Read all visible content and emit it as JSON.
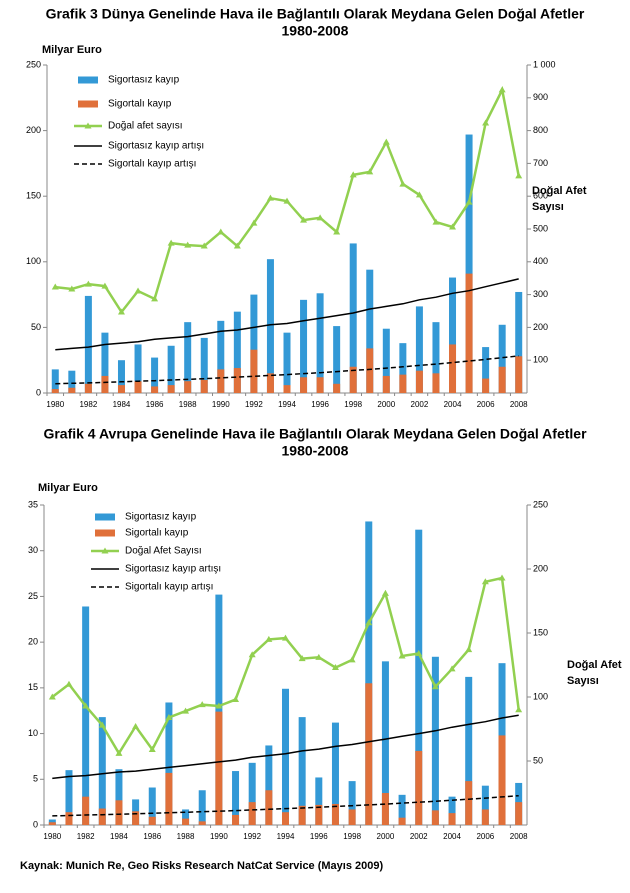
{
  "chart_data": [
    {
      "type": "bar",
      "title": "Grafik 3 Dünya Genelinde Hava ile Bağlantılı Olarak Meydana Gelen Doğal Afetler",
      "subtitle": "1980-2008",
      "ylabel": "Milyar Euro",
      "y2label": [
        "Doğal Afet",
        "Sayısı"
      ],
      "categories": [
        "1980",
        null,
        "1982",
        null,
        "1984",
        null,
        "1986",
        null,
        "1988",
        null,
        "1990",
        null,
        "1992",
        null,
        "1994",
        null,
        "1996",
        null,
        "1998",
        null,
        "2000",
        null,
        "2002",
        null,
        "2004",
        null,
        "2006",
        null,
        "2008"
      ],
      "ylim": [
        0,
        250
      ],
      "yticks": [
        0,
        50,
        100,
        150,
        200,
        250
      ],
      "y2lim": [
        0,
        1000
      ],
      "y2ticks": [
        100,
        200,
        300,
        400,
        500,
        600,
        700,
        800,
        900,
        {
          "value": 1000,
          "label": "1 000"
        }
      ],
      "series": [
        {
          "name": "Sigortasız kayıp",
          "kind": "bar",
          "color": "#3399d6",
          "values": [
            18,
            17,
            74,
            46,
            25,
            37,
            27,
            36,
            54,
            42,
            55,
            62,
            75,
            102,
            46,
            71,
            76,
            51,
            114,
            94,
            49,
            38,
            66,
            54,
            88,
            197,
            35,
            52,
            77
          ]
        },
        {
          "name": "Sigortalı kayıp",
          "kind": "bar",
          "color": "#e0703a",
          "values": [
            3,
            4,
            7,
            13,
            6,
            9,
            5,
            6,
            9,
            10,
            18,
            19,
            33,
            15,
            6,
            12,
            12,
            7,
            20,
            34,
            13,
            14,
            17,
            15,
            37,
            91,
            11,
            20,
            28
          ]
        },
        {
          "name": "Doğal afet sayısı",
          "kind": "line",
          "marker": "triangle",
          "axis": "y2",
          "color": "#92d050",
          "values": [
            323,
            317,
            332,
            326,
            247,
            311,
            287,
            457,
            451,
            448,
            491,
            448,
            518,
            594,
            585,
            527,
            534,
            491,
            665,
            674,
            765,
            637,
            604,
            521,
            506,
            582,
            823,
            924,
            662
          ]
        },
        {
          "name": "Sigortasız kayıp artışı",
          "kind": "line",
          "color": "#000000",
          "values": [
            33,
            34,
            35,
            37,
            38,
            39,
            41,
            42,
            43,
            45,
            47,
            48,
            50,
            52,
            53,
            55,
            57,
            59,
            61,
            64,
            66,
            68,
            71,
            73,
            76,
            78,
            81,
            84,
            87
          ]
        },
        {
          "name": "Sigortalı kayıp artışı",
          "kind": "line",
          "dash": true,
          "color": "#000000",
          "values": [
            7,
            7.4,
            7.7,
            8.1,
            8.5,
            9.0,
            9.4,
            9.9,
            10.4,
            10.9,
            11.5,
            12.1,
            12.7,
            13.4,
            14.0,
            14.8,
            15.5,
            16.3,
            17.2,
            18.0,
            19.0,
            20.0,
            21.0,
            22.0,
            23.2,
            24.4,
            25.6,
            26.9,
            28.3
          ]
        }
      ]
    },
    {
      "type": "bar",
      "title": "Grafik 4 Avrupa Genelinde Hava ile Bağlantılı Olarak Meydana Gelen Doğal Afetler",
      "subtitle": "1980-2008",
      "ylabel": "Milyar Euro",
      "y2label": [
        "Doğal Afet",
        "Sayısı"
      ],
      "categories": [
        "1980",
        null,
        "1982",
        null,
        "1984",
        null,
        "1986",
        null,
        "1988",
        null,
        "1990",
        null,
        "1992",
        null,
        "1994",
        null,
        "1996",
        null,
        "1998",
        null,
        "2000",
        null,
        "2002",
        null,
        "2004",
        null,
        "2006",
        null,
        "2008"
      ],
      "ylim": [
        0,
        35
      ],
      "yticks": [
        0,
        5,
        10,
        15,
        20,
        25,
        30,
        35
      ],
      "y2lim": [
        0,
        250
      ],
      "y2ticks": [
        50,
        100,
        150,
        200,
        250
      ],
      "series": [
        {
          "name": "Sigortasız kayıp",
          "kind": "bar",
          "color": "#3399d6",
          "values": [
            0.6,
            6.0,
            23.9,
            11.8,
            6.1,
            2.8,
            4.1,
            13.4,
            1.7,
            3.8,
            25.2,
            5.9,
            6.8,
            8.7,
            14.9,
            11.8,
            5.2,
            11.2,
            4.8,
            33.2,
            17.9,
            3.3,
            32.3,
            18.4,
            3.1,
            16.2,
            4.3,
            17.7,
            4.6
          ]
        },
        {
          "name": "Sigortalı kayıp",
          "kind": "bar",
          "color": "#e0703a",
          "values": [
            0.3,
            1.4,
            3.1,
            1.8,
            2.7,
            1.5,
            0.9,
            5.7,
            0.7,
            0.4,
            12.4,
            1.1,
            2.5,
            3.8,
            1.4,
            2.1,
            2.2,
            2.3,
            1.7,
            15.5,
            3.5,
            0.8,
            8.1,
            1.6,
            1.3,
            4.8,
            1.7,
            9.8,
            2.5
          ]
        },
        {
          "name": "Doğal Afet Sayısı",
          "kind": "line",
          "marker": "triangle",
          "axis": "y2",
          "color": "#92d050",
          "values": [
            100,
            110,
            93,
            78,
            56,
            77,
            59,
            84,
            89,
            94,
            93,
            98,
            133,
            145,
            146,
            130,
            131,
            123,
            129,
            158,
            181,
            132,
            134,
            108,
            122,
            137,
            190,
            193,
            90
          ]
        },
        {
          "name": "Sigortasız kayıp artışı",
          "kind": "line",
          "color": "#000000",
          "values": [
            5.1,
            5.3,
            5.4,
            5.6,
            5.8,
            5.9,
            6.1,
            6.3,
            6.5,
            6.7,
            6.9,
            7.1,
            7.4,
            7.6,
            7.8,
            8.1,
            8.3,
            8.6,
            8.8,
            9.1,
            9.4,
            9.7,
            10.0,
            10.3,
            10.7,
            11.0,
            11.3,
            11.7,
            12.0
          ]
        },
        {
          "name": "Sigortalı kayıp artışı",
          "kind": "line",
          "dash": true,
          "color": "#000000",
          "values": [
            1.0,
            1.04,
            1.09,
            1.13,
            1.18,
            1.23,
            1.28,
            1.34,
            1.39,
            1.45,
            1.51,
            1.58,
            1.65,
            1.72,
            1.79,
            1.86,
            1.94,
            2.03,
            2.11,
            2.2,
            2.29,
            2.39,
            2.49,
            2.59,
            2.71,
            2.82,
            2.94,
            3.07,
            3.2
          ]
        }
      ]
    }
  ],
  "source": "Kaynak: Munich Re, Geo Risks Research NatCat Service (Mayıs 2009)"
}
